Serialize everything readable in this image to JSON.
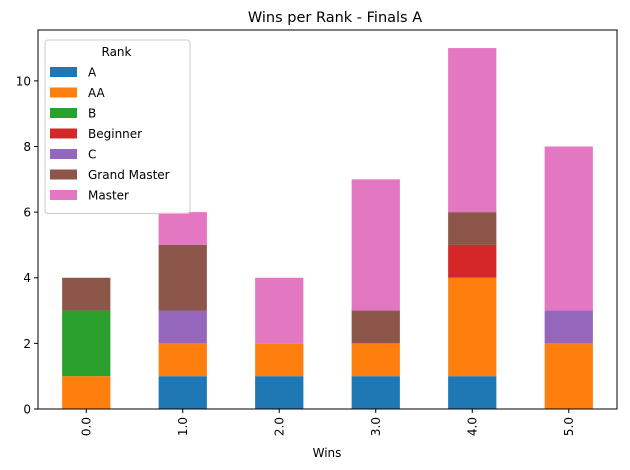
{
  "chart_data": {
    "type": "bar",
    "stacked": true,
    "title": "Wins per Rank - Finals A",
    "xlabel": "Wins",
    "ylabel": "",
    "categories": [
      "0.0",
      "1.0",
      "2.0",
      "3.0",
      "4.0",
      "5.0"
    ],
    "ylim": [
      0,
      11.55
    ],
    "yticks": [
      0,
      2,
      4,
      6,
      8,
      10
    ],
    "grid": false,
    "legend": {
      "title": "Rank",
      "position": "top-left"
    },
    "series": [
      {
        "name": "A",
        "color": "#1f77b4",
        "values": [
          0,
          1,
          1,
          1,
          1,
          0
        ]
      },
      {
        "name": "AA",
        "color": "#ff7f0e",
        "values": [
          1,
          1,
          1,
          1,
          3,
          2
        ]
      },
      {
        "name": "B",
        "color": "#2ca02c",
        "values": [
          2,
          0,
          0,
          0,
          0,
          0
        ]
      },
      {
        "name": "Beginner",
        "color": "#d62728",
        "values": [
          0,
          0,
          0,
          0,
          1,
          0
        ]
      },
      {
        "name": "C",
        "color": "#9467bd",
        "values": [
          0,
          1,
          0,
          0,
          0,
          1
        ]
      },
      {
        "name": "Grand Master",
        "color": "#8c564b",
        "values": [
          1,
          2,
          0,
          1,
          1,
          0
        ]
      },
      {
        "name": "Master",
        "color": "#e377c2",
        "values": [
          0,
          1,
          2,
          4,
          5,
          5
        ]
      }
    ]
  }
}
